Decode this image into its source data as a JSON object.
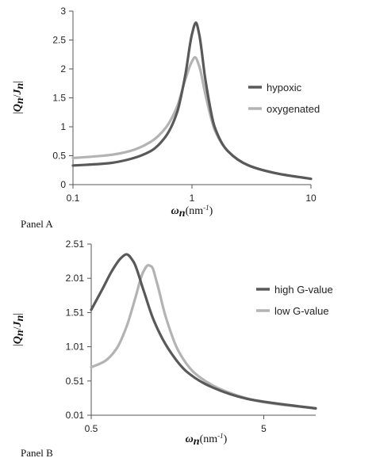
{
  "chart_data": [
    {
      "type": "line",
      "panel_label": "Panel A",
      "ylabel": "|Q_n/J_n|",
      "ylabel_parts": {
        "num": "Q",
        "num_sub": "n",
        "den": "J",
        "den_sub": "n"
      },
      "xlabel_parts": {
        "sym": "ω",
        "sub": "n",
        "unit_open": "(nm",
        "unit_exp": "-1",
        "unit_close": ")"
      },
      "x_scale": "log",
      "xlim": [
        0.1,
        10
      ],
      "ylim": [
        0,
        3
      ],
      "x_ticks": [
        0.1,
        1,
        10
      ],
      "x_tick_labels": [
        "0.1",
        "1",
        "10"
      ],
      "y_ticks": [
        0,
        0.5,
        1,
        1.5,
        2,
        2.5,
        3
      ],
      "y_tick_labels": [
        "0",
        "0.5",
        "1",
        "1.5",
        "2",
        "2.5",
        "3"
      ],
      "legend_position": "right",
      "series": [
        {
          "name": "hypoxic",
          "color": "#595959",
          "x": [
            0.1,
            0.2,
            0.3,
            0.45,
            0.6,
            0.75,
            0.88,
            1.0,
            1.08,
            1.15,
            1.3,
            1.55,
            2.0,
            3.0,
            5.0,
            10.0
          ],
          "y": [
            0.33,
            0.37,
            0.44,
            0.58,
            0.83,
            1.25,
            1.9,
            2.6,
            2.8,
            2.6,
            1.8,
            1.0,
            0.58,
            0.33,
            0.2,
            0.1
          ]
        },
        {
          "name": "oxygenated",
          "color": "#b3b3b3",
          "x": [
            0.1,
            0.2,
            0.3,
            0.45,
            0.6,
            0.75,
            0.88,
            1.0,
            1.06,
            1.15,
            1.3,
            1.55,
            2.0,
            3.0,
            5.0,
            10.0
          ],
          "y": [
            0.46,
            0.51,
            0.58,
            0.74,
            0.98,
            1.35,
            1.82,
            2.13,
            2.2,
            2.05,
            1.55,
            0.95,
            0.58,
            0.33,
            0.2,
            0.1
          ]
        }
      ]
    },
    {
      "type": "line",
      "panel_label": "Panel B",
      "ylabel": "|Q_n/J_n|",
      "ylabel_parts": {
        "num": "Q",
        "num_sub": "n",
        "den": "J",
        "den_sub": "n"
      },
      "xlabel_parts": {
        "sym": "ω",
        "sub": "n",
        "unit_open": "(nm",
        "unit_exp": "-1",
        "unit_close": ")"
      },
      "x_scale": "log",
      "xlim": [
        0.5,
        10
      ],
      "ylim": [
        0.01,
        2.51
      ],
      "x_ticks": [
        0.5,
        5
      ],
      "x_tick_labels": [
        "0.5",
        "5"
      ],
      "y_ticks": [
        0.01,
        0.51,
        1.01,
        1.51,
        2.01,
        2.51
      ],
      "y_tick_labels": [
        "0.01",
        "0.51",
        "1.01",
        "1.51",
        "2.01",
        "2.51"
      ],
      "legend_position": "right",
      "series": [
        {
          "name": "high G-value",
          "color": "#595959",
          "x": [
            0.5,
            0.58,
            0.66,
            0.74,
            0.8,
            0.88,
            1.0,
            1.15,
            1.4,
            1.8,
            2.5,
            4.0,
            6.0,
            10.0
          ],
          "y": [
            1.55,
            1.85,
            2.12,
            2.3,
            2.36,
            2.25,
            1.85,
            1.4,
            0.98,
            0.64,
            0.42,
            0.25,
            0.18,
            0.11
          ]
        },
        {
          "name": "low G-value",
          "color": "#b3b3b3",
          "x": [
            0.5,
            0.6,
            0.7,
            0.8,
            0.9,
            1.0,
            1.07,
            1.12,
            1.2,
            1.35,
            1.6,
            2.0,
            3.0,
            5.0,
            10.0
          ],
          "y": [
            0.71,
            0.8,
            0.98,
            1.3,
            1.72,
            2.1,
            2.2,
            2.18,
            1.95,
            1.45,
            0.95,
            0.62,
            0.36,
            0.2,
            0.11
          ]
        }
      ]
    }
  ]
}
